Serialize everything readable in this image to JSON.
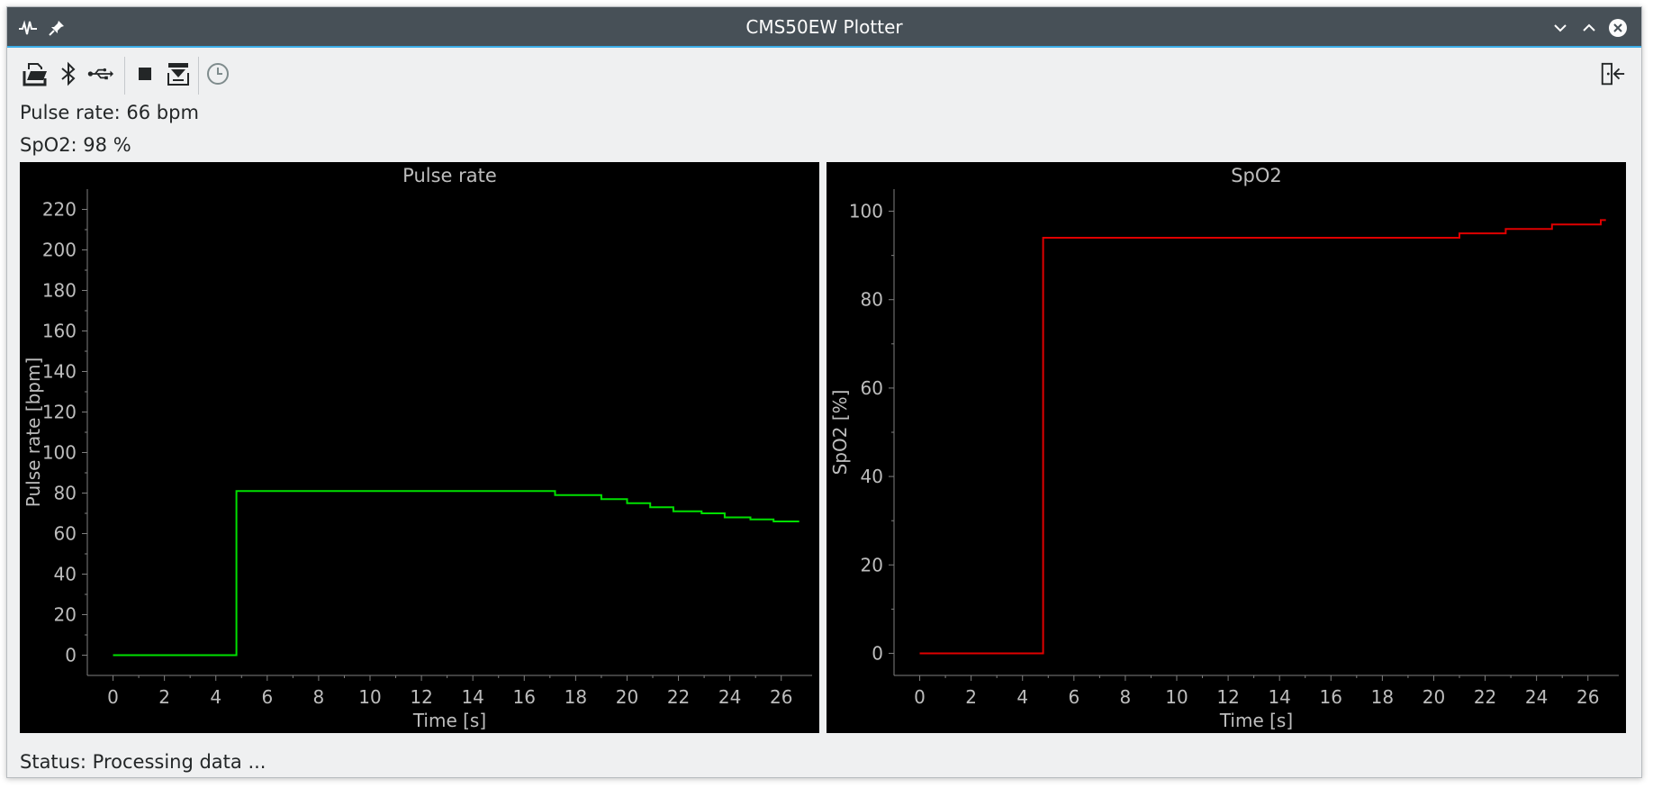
{
  "window": {
    "title": "CMS50EW Plotter"
  },
  "titlebar_icons": {
    "app": "waveform-icon",
    "pin": "pin-icon",
    "minimize": "chevron-down-icon",
    "maximize": "chevron-up-icon",
    "close": "close-icon"
  },
  "toolbar": {
    "items": [
      "open-file-icon",
      "bluetooth-icon",
      "usb-icon",
      "stop-icon",
      "download-data-icon",
      "clock-icon"
    ],
    "right_item": "exit-icon"
  },
  "readings": {
    "pulse": "Pulse rate: 66 bpm",
    "spo2": "SpO2: 98 %"
  },
  "colors": {
    "pulse_line": "#00e000",
    "spo2_line": "#e00000",
    "axis": "#7f7f7f",
    "tick_label": "#bdbdbd",
    "plot_bg": "#000000",
    "titlebar": "#475057",
    "titlebar_accent": "#3daee9"
  },
  "chart_data": [
    {
      "type": "line",
      "title": "Pulse rate",
      "xlabel": "Time [s]",
      "ylabel": "Pulse rate [bpm]",
      "xlim": [
        -1,
        27.2
      ],
      "ylim": [
        -10,
        230
      ],
      "xticks": [
        0,
        2,
        4,
        6,
        8,
        10,
        12,
        14,
        16,
        18,
        20,
        22,
        24,
        26
      ],
      "yticks": [
        0,
        20,
        40,
        60,
        80,
        100,
        120,
        140,
        160,
        180,
        200,
        220
      ],
      "grid": false,
      "step": true,
      "series": [
        {
          "x": [
            0,
            4.8,
            4.8,
            17.2,
            17.2,
            19.0,
            19.0,
            20.0,
            20.0,
            20.9,
            20.9,
            21.8,
            21.8,
            22.9,
            22.9,
            23.8,
            23.8,
            24.8,
            24.8,
            25.7,
            25.7,
            26.7
          ],
          "y": [
            0,
            0,
            81,
            81,
            79,
            79,
            77,
            77,
            75,
            75,
            73,
            73,
            71,
            71,
            70,
            70,
            68,
            68,
            67,
            67,
            66,
            66
          ]
        }
      ]
    },
    {
      "type": "line",
      "title": "SpO2",
      "xlabel": "Time [s]",
      "ylabel": "SpO2 [%]",
      "xlim": [
        -1,
        27.2
      ],
      "ylim": [
        -5,
        105
      ],
      "xticks": [
        0,
        2,
        4,
        6,
        8,
        10,
        12,
        14,
        16,
        18,
        20,
        22,
        24,
        26
      ],
      "yticks": [
        0,
        20,
        40,
        60,
        80,
        100
      ],
      "grid": false,
      "step": true,
      "series": [
        {
          "x": [
            0,
            4.8,
            4.8,
            21.0,
            21.0,
            22.8,
            22.8,
            24.6,
            24.6,
            26.5,
            26.5,
            26.7
          ],
          "y": [
            0,
            0,
            94,
            94,
            95,
            95,
            96,
            96,
            97,
            97,
            98,
            98
          ]
        }
      ]
    }
  ],
  "status": "Status: Processing data ..."
}
